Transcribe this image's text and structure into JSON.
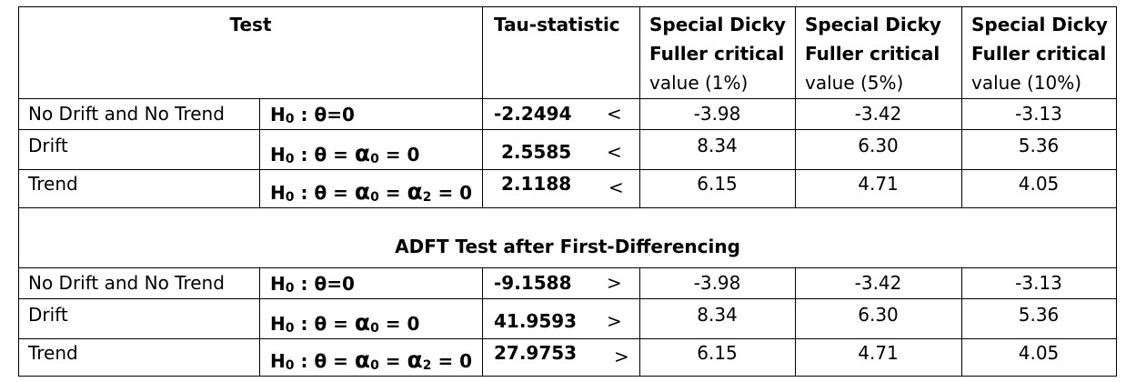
{
  "header": {
    "test": "Test",
    "tau": "Tau-statistic",
    "cv1": [
      "Special Dicky",
      "Fuller critical",
      "value (1%)"
    ],
    "cv5": [
      "Special Dicky",
      "Fuller critical",
      "value (5%)"
    ],
    "cv10": [
      "Special Dicky",
      "Fuller critical",
      "value (10%)"
    ]
  },
  "hypothesis": {
    "prefix": "H",
    "sub0": "0",
    "theta": "θ",
    "alpha": "α",
    "sub2": "2",
    "eq_zero": "=0",
    "eq": "=",
    "zero": "0",
    "colon": ":"
  },
  "section1": {
    "rows": [
      {
        "test": "No Drift and No Trend",
        "tau": "-2.2494",
        "op": "<",
        "cv1": "-3.98",
        "cv5": "-3.42",
        "cv10": "-3.13"
      },
      {
        "test": "Drift",
        "tau": "2.5585",
        "op": "<",
        "cv1": "8.34",
        "cv5": "6.30",
        "cv10": "5.36"
      },
      {
        "test": "Trend",
        "tau": "2.1188",
        "op": "<",
        "cv1": "6.15",
        "cv5": "4.71",
        "cv10": "4.05"
      }
    ]
  },
  "section2": {
    "title": "ADFT Test after First-Differencing",
    "rows": [
      {
        "test": "No Drift and No Trend",
        "tau": "-9.1588",
        "op": ">",
        "cv1": "-3.98",
        "cv5": "-3.42",
        "cv10": "-3.13"
      },
      {
        "test": "Drift",
        "tau": "41.9593",
        "op": ">",
        "cv1": "8.34",
        "cv5": "6.30",
        "cv10": "5.36"
      },
      {
        "test": "Trend",
        "tau": "27.9753",
        "op": ">",
        "cv1": "6.15",
        "cv5": "4.71",
        "cv10": "4.05"
      }
    ]
  }
}
